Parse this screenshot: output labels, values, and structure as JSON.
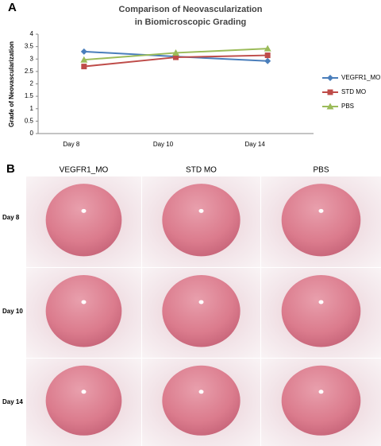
{
  "panel_labels": [
    "A",
    "B"
  ],
  "chart_data": {
    "type": "line",
    "title": [
      "Comparison of Neovascularization",
      "in Biomicroscopic Grading"
    ],
    "y_label": "Grade of Neovascularization",
    "categories": [
      "Day 8",
      "Day 10",
      "Day 14"
    ],
    "series": [
      {
        "name": "VEGFR1_MO",
        "color": "#4a7ebb",
        "marker": "diamond",
        "values": [
          3.3,
          3.1,
          2.92
        ]
      },
      {
        "name": "STD MO",
        "color": "#be4b48",
        "marker": "square",
        "values": [
          2.7,
          3.07,
          3.15
        ]
      },
      {
        "name": "PBS",
        "color": "#9bbb59",
        "marker": "triangle",
        "values": [
          2.97,
          3.25,
          3.42
        ]
      }
    ],
    "ylim": [
      0,
      4
    ],
    "yticks": [
      0,
      0.5,
      1,
      1.5,
      2,
      2.5,
      3,
      3.5,
      4
    ],
    "grid": false,
    "legend": "right"
  },
  "panel_b": {
    "columns": [
      "VEGFR1_MO",
      "STD MO",
      "PBS"
    ],
    "rows": [
      "Day 8",
      "Day 10",
      "Day 14"
    ]
  }
}
